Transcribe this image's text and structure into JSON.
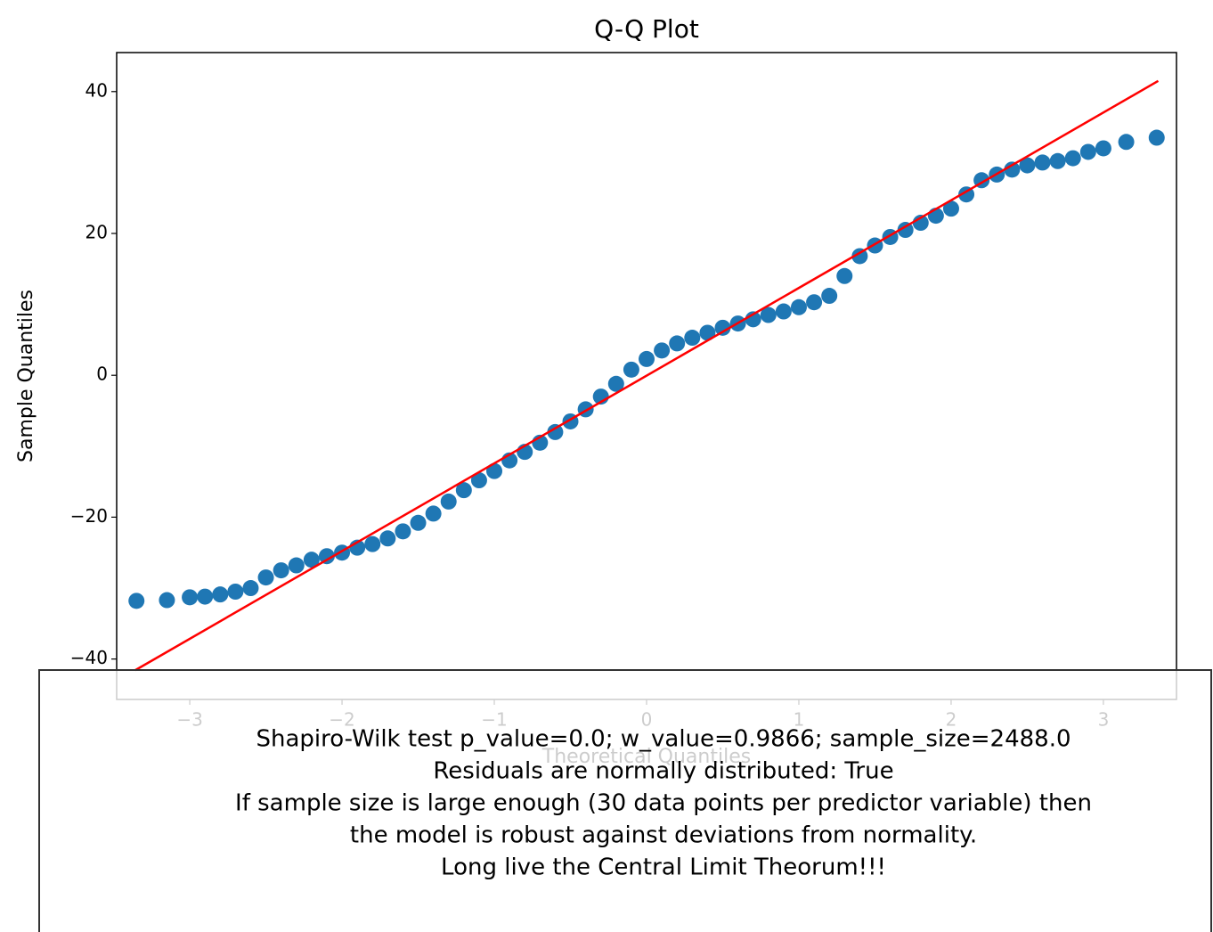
{
  "chart_data": {
    "type": "scatter",
    "title": "Q-Q Plot",
    "x_label": "Theoretical Quantiles",
    "y_label": "Sample Quantiles",
    "xlim": [
      -3.48,
      3.48
    ],
    "ylim": [
      -45.7,
      45.5
    ],
    "xticks": [
      {
        "value": -3,
        "label": "−3"
      },
      {
        "value": -2,
        "label": "−2"
      },
      {
        "value": -1,
        "label": "−1"
      },
      0,
      1,
      2,
      3
    ],
    "yticks": [
      {
        "value": -40,
        "label": "−40"
      },
      {
        "value": -20,
        "label": "−20"
      },
      0,
      20,
      40
    ],
    "series": [
      {
        "color": "#1f77b4",
        "x": [
          -3.35,
          -3.15,
          -3.0,
          -2.9,
          -2.8,
          -2.7,
          -2.6,
          -2.5,
          -2.4,
          -2.3,
          -2.2,
          -2.1,
          -2.0,
          -1.9,
          -1.8,
          -1.7,
          -1.6,
          -1.5,
          -1.4,
          -1.3,
          -1.2,
          -1.1,
          -1.0,
          -0.9,
          -0.8,
          -0.7,
          -0.6,
          -0.5,
          -0.4,
          -0.3,
          -0.2,
          -0.1,
          0.0,
          0.1,
          0.2,
          0.3,
          0.4,
          0.5,
          0.6,
          0.7,
          0.8,
          0.9,
          1.0,
          1.1,
          1.2,
          1.3,
          1.4,
          1.5,
          1.6,
          1.7,
          1.8,
          1.9,
          2.0,
          2.1,
          2.2,
          2.3,
          2.4,
          2.5,
          2.6,
          2.7,
          2.8,
          2.9,
          3.0,
          3.15,
          3.35
        ],
        "values": [
          -31.8,
          -31.7,
          -31.3,
          -31.2,
          -30.9,
          -30.5,
          -30.0,
          -28.5,
          -27.5,
          -26.8,
          -26.0,
          -25.5,
          -25.0,
          -24.3,
          -23.8,
          -23.0,
          -22.0,
          -20.8,
          -19.5,
          -17.8,
          -16.2,
          -14.8,
          -13.5,
          -12.0,
          -10.8,
          -9.5,
          -8.0,
          -6.5,
          -4.8,
          -3.0,
          -1.2,
          0.8,
          2.3,
          3.5,
          4.5,
          5.3,
          6.0,
          6.7,
          7.3,
          7.9,
          8.5,
          9.0,
          9.6,
          10.3,
          11.2,
          14.0,
          16.8,
          18.3,
          19.5,
          20.5,
          21.5,
          22.5,
          23.5,
          25.5,
          27.5,
          28.3,
          29.0,
          29.6,
          30.0,
          30.2,
          30.6,
          31.5,
          32.0,
          32.9,
          33.5
        ]
      }
    ],
    "reference_line": {
      "color": "#ff0000",
      "x": [
        -3.36,
        3.36
      ],
      "values": [
        -41.6,
        41.5
      ]
    },
    "annotation": [
      "Shapiro-Wilk test p_value=0.0; w_value=0.9866; sample_size=2488.0",
      "Residuals are normally distributed: True",
      "If sample size is large enough (30 data points per predictor variable) then",
      "the model is robust against deviations from normality.",
      "Long live the Central Limit Theorum!!!"
    ]
  }
}
